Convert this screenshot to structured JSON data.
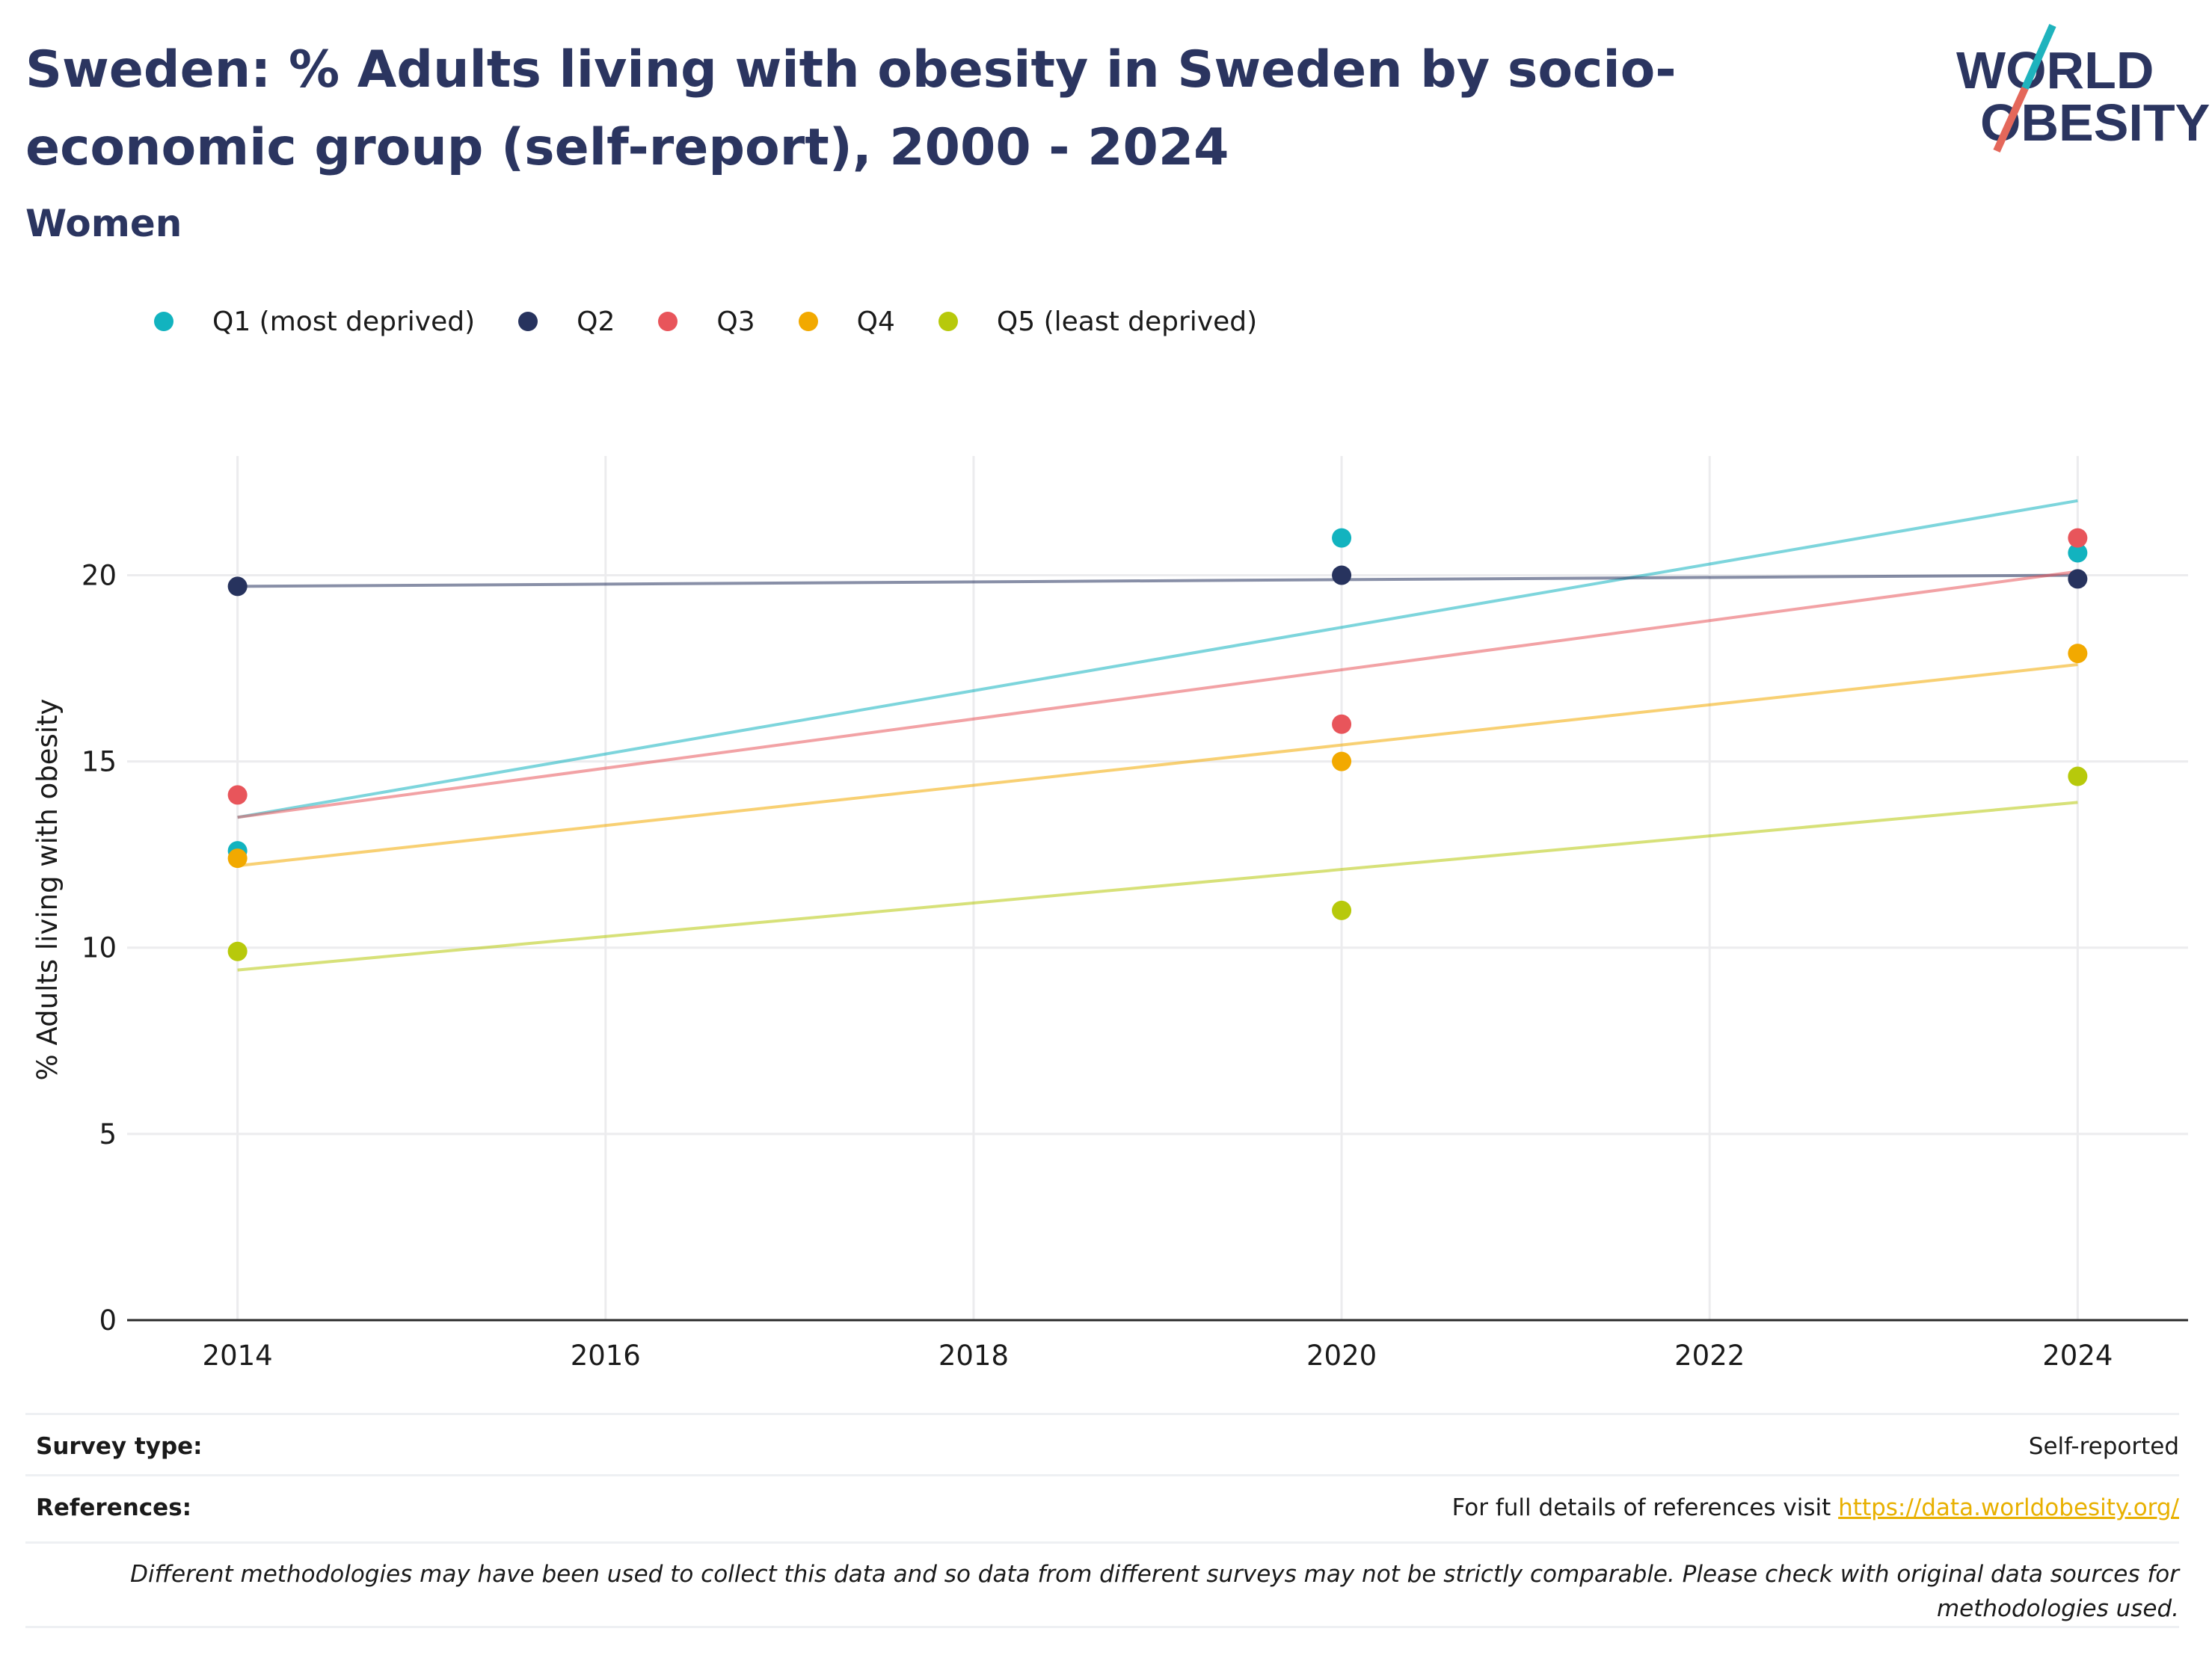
{
  "header": {
    "title": "Sweden: % Adults living with obesity in Sweden by socio-economic group (self-report), 2000 - 2024",
    "subtitle": "Women"
  },
  "logo": {
    "line1": "WORLD",
    "line2": "OBESITY",
    "colors": {
      "text": "#2b3560",
      "slash_top": "#1fb3bd",
      "slash_bottom": "#e4675a"
    }
  },
  "chart_data": {
    "type": "scatter",
    "title": "",
    "xlabel": "",
    "ylabel": "% Adults living with obesity",
    "x": [
      2014,
      2020,
      2024
    ],
    "xlim": [
      2013.4,
      2024.6
    ],
    "ylim": [
      0,
      23.2
    ],
    "x_ticks": [
      2014,
      2016,
      2018,
      2020,
      2022,
      2024
    ],
    "y_ticks": [
      0,
      5,
      10,
      15,
      20
    ],
    "grid": true,
    "legend_position": "top-left",
    "trendlines": true,
    "series": [
      {
        "name": "Q1 (most deprived)",
        "color": "#12b3bf",
        "values": [
          12.6,
          21.0,
          20.6
        ],
        "trend": [
          13.5,
          22.0
        ]
      },
      {
        "name": "Q2",
        "color": "#27335e",
        "values": [
          19.7,
          20.0,
          19.9
        ],
        "trend": [
          19.7,
          20.0
        ]
      },
      {
        "name": "Q3",
        "color": "#e8555b",
        "values": [
          14.1,
          16.0,
          21.0
        ],
        "trend": [
          13.5,
          20.1
        ]
      },
      {
        "name": "Q4",
        "color": "#f2a900",
        "values": [
          12.4,
          15.0,
          17.9
        ],
        "trend": [
          12.2,
          17.6
        ]
      },
      {
        "name": "Q5 (least deprived)",
        "color": "#b7c90b",
        "values": [
          9.9,
          11.0,
          14.6
        ],
        "trend": [
          9.4,
          13.9
        ]
      }
    ]
  },
  "footer": {
    "survey_type_label": "Survey type:",
    "survey_type_value": "Self-reported",
    "references_label": "References:",
    "references_text": "For full details of references visit ",
    "references_link": "https://data.worldobesity.org/",
    "note": "Different methodologies may have been used to collect this data and so data from different surveys may not be strictly comparable. Please check with original data sources for methodologies used."
  }
}
